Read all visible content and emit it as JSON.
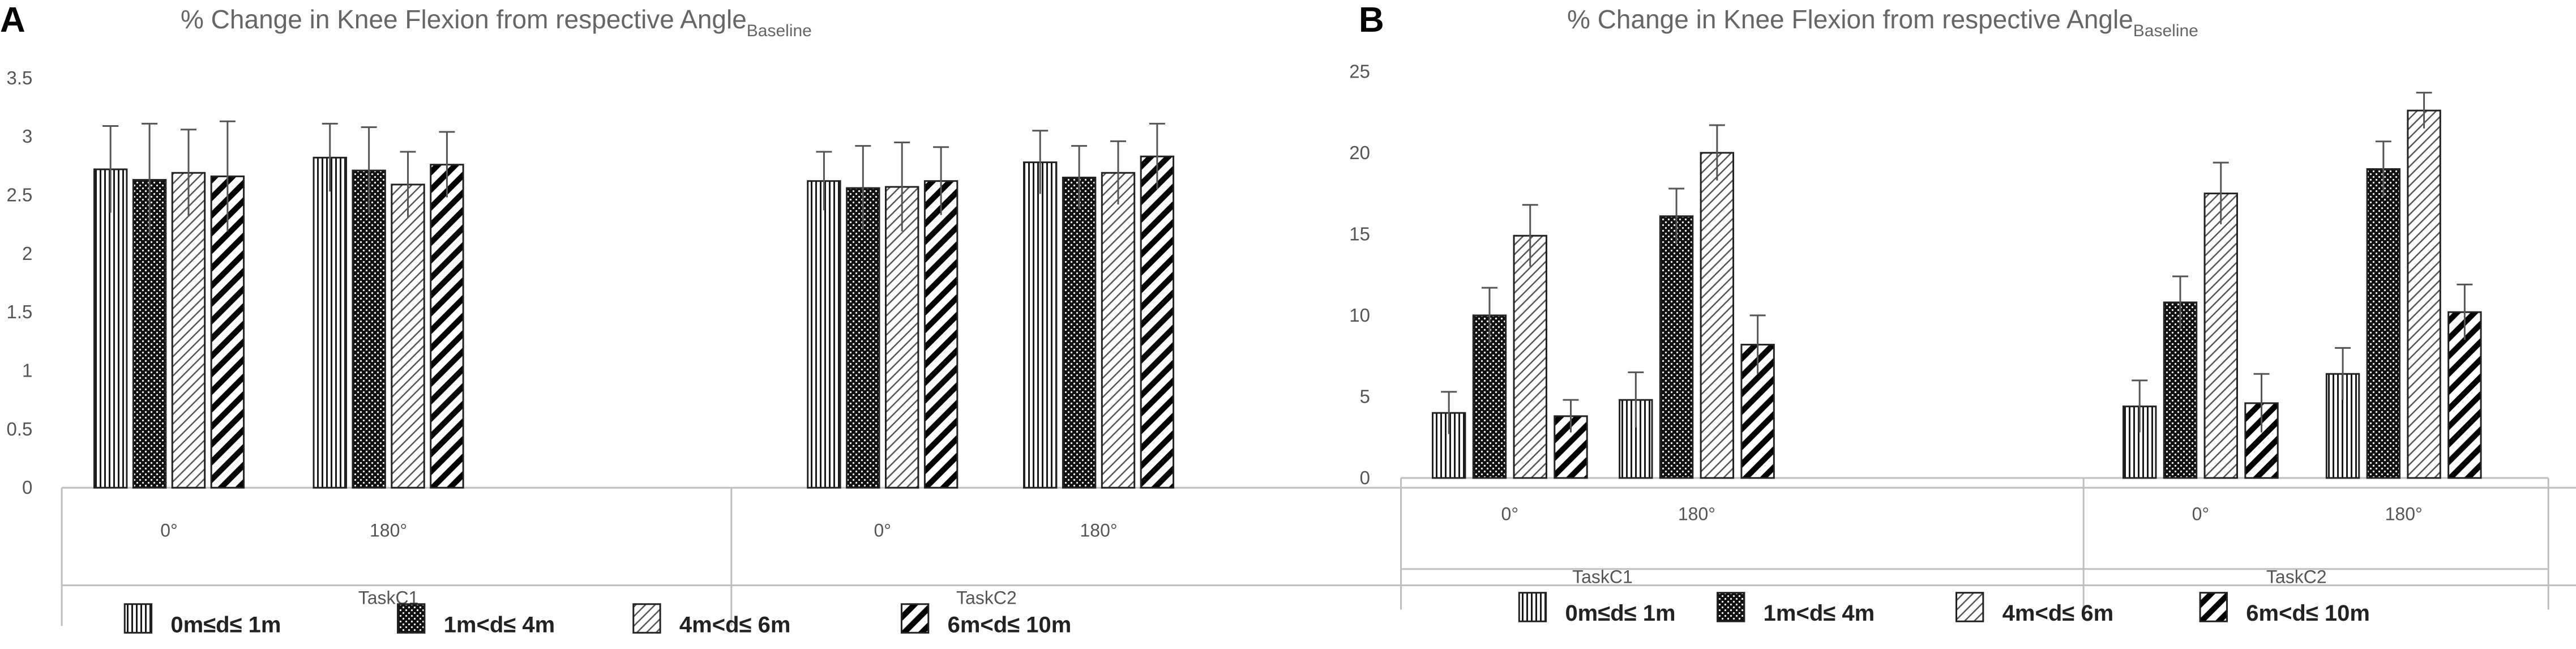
{
  "colors": {
    "bar_stroke": "#222222",
    "axis": "#bfbfbf",
    "text": "#595959"
  },
  "chart_data": [
    {
      "panel_label": "A",
      "type": "bar",
      "title": "% Change in Knee Flexion from respective Angle",
      "title_subscript": "Baseline",
      "ylim": [
        0,
        3.5
      ],
      "yticks": [
        "0",
        "0.5",
        "1",
        "1.5",
        "2",
        "2.5",
        "3",
        "3.5"
      ],
      "groups": [
        {
          "task": "TaskC1",
          "angles": [
            "0°",
            "180°"
          ]
        },
        {
          "task": "TaskC2",
          "angles": [
            "0°",
            "180°"
          ]
        }
      ],
      "series": [
        {
          "name": "0m≤d≤ 1m",
          "pattern": "vertical",
          "values": [
            2.72,
            2.82,
            2.62,
            2.78
          ],
          "errors": [
            0.37,
            0.29,
            0.25,
            0.27
          ]
        },
        {
          "name": "1m<d≤ 4m",
          "pattern": "dots",
          "values": [
            2.63,
            2.71,
            2.56,
            2.65
          ],
          "errors": [
            0.48,
            0.37,
            0.36,
            0.27
          ]
        },
        {
          "name": "4m<d≤ 6m",
          "pattern": "diag-light",
          "values": [
            2.69,
            2.59,
            2.57,
            2.69
          ],
          "errors": [
            0.37,
            0.28,
            0.38,
            0.27
          ]
        },
        {
          "name": "6m<d≤ 10m",
          "pattern": "diag-heavy",
          "values": [
            2.66,
            2.76,
            2.62,
            2.83
          ],
          "errors": [
            0.47,
            0.28,
            0.29,
            0.28
          ]
        }
      ]
    },
    {
      "panel_label": "B",
      "type": "bar",
      "title": "% Change in Knee Flexion from respective Angle",
      "title_subscript": "Baseline",
      "ylim": [
        0,
        25
      ],
      "yticks": [
        "0",
        "5",
        "10",
        "15",
        "20",
        "25"
      ],
      "groups": [
        {
          "task": "TaskC1",
          "angles": [
            "0°",
            "180°"
          ]
        },
        {
          "task": "TaskC2",
          "angles": [
            "0°",
            "180°"
          ]
        }
      ],
      "series": [
        {
          "name": "0m≤d≤ 1m",
          "pattern": "vertical",
          "values": [
            4.0,
            4.8,
            4.4,
            6.4
          ],
          "errors": [
            1.3,
            1.7,
            1.6,
            1.6
          ]
        },
        {
          "name": "1m<d≤ 4m",
          "pattern": "dots",
          "values": [
            10.0,
            16.1,
            10.8,
            19.0
          ],
          "errors": [
            1.7,
            1.7,
            1.6,
            1.7
          ]
        },
        {
          "name": "4m<d≤ 6m",
          "pattern": "diag-light",
          "values": [
            14.9,
            20.0,
            17.5,
            22.6
          ],
          "errors": [
            1.9,
            1.7,
            1.9,
            1.1
          ]
        },
        {
          "name": "6m<d≤ 10m",
          "pattern": "diag-heavy",
          "values": [
            3.8,
            8.2,
            4.6,
            10.2
          ],
          "errors": [
            1.0,
            1.8,
            1.8,
            1.7
          ]
        }
      ]
    }
  ]
}
